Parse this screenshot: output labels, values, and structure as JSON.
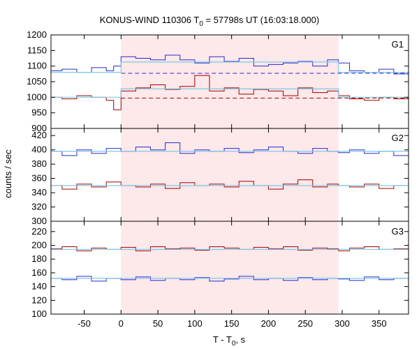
{
  "figure": {
    "title_prefix": "KONUS-WIND 110306 T",
    "title_sub": "0",
    "title_suffix": " = 57798s UT (16:03:18.000)",
    "xlabel_prefix": "T - T",
    "xlabel_sub": "0",
    "xlabel_suffix": ", s",
    "ylabel": "counts / sec"
  },
  "colors": {
    "red_series": "#a00000",
    "blue_series": "#2a2ad0",
    "fit_line": "#7fc8e8",
    "shade": "#fde8ea"
  },
  "chart_data": [
    {
      "type": "line",
      "panel": "G1",
      "xlim": [
        -95,
        390
      ],
      "ylim": [
        900,
        1200
      ],
      "yticks": [
        900,
        950,
        1000,
        1050,
        1100,
        1150,
        1200
      ],
      "shaded_interval": [
        0,
        295
      ],
      "series": [
        {
          "color": "blue",
          "style": "step",
          "x": [
            -95,
            -80,
            -60,
            -40,
            -20,
            -10,
            0,
            20,
            40,
            60,
            80,
            100,
            120,
            140,
            160,
            180,
            200,
            220,
            240,
            260,
            280,
            295,
            310,
            330,
            350,
            370,
            390
          ],
          "y": [
            1085,
            1090,
            1080,
            1095,
            1085,
            1100,
            1130,
            1125,
            1120,
            1135,
            1120,
            1110,
            1130,
            1115,
            1125,
            1100,
            1105,
            1110,
            1115,
            1100,
            1120,
            1110,
            1085,
            1080,
            1090,
            1075,
            1080
          ]
        },
        {
          "color": "red",
          "style": "step",
          "x": [
            -95,
            -80,
            -60,
            -40,
            -20,
            -10,
            0,
            20,
            40,
            60,
            80,
            100,
            120,
            140,
            160,
            180,
            200,
            220,
            240,
            260,
            280,
            295,
            310,
            330,
            350,
            370,
            390
          ],
          "y": [
            1000,
            995,
            1005,
            1000,
            990,
            960,
            1020,
            1030,
            1040,
            1025,
            1035,
            1070,
            1020,
            1030,
            1010,
            1025,
            1020,
            1005,
            1030,
            1015,
            1020,
            1005,
            995,
            990,
            1000,
            995,
            990
          ]
        },
        {
          "style": "dashed",
          "color": "blue",
          "x": [
            0,
            390
          ],
          "y": [
            1077,
            1077
          ]
        },
        {
          "style": "dashed",
          "color": "red",
          "x": [
            0,
            390
          ],
          "y": [
            997,
            997
          ]
        },
        {
          "style": "fit",
          "color": "lightblue",
          "x": [
            -95,
            0,
            0,
            295,
            295,
            390
          ],
          "y": [
            1080,
            1080,
            1113,
            1113,
            1080,
            1080
          ]
        },
        {
          "style": "fit",
          "color": "lightblue",
          "x": [
            -95,
            0,
            0,
            295,
            295,
            390
          ],
          "y": [
            1000,
            1000,
            1027,
            1027,
            1000,
            1000
          ]
        }
      ]
    },
    {
      "type": "line",
      "panel": "G2",
      "xlim": [
        -95,
        390
      ],
      "ylim": [
        300,
        430
      ],
      "yticks": [
        300,
        320,
        340,
        360,
        380,
        400,
        420
      ],
      "shaded_interval": [
        0,
        295
      ],
      "series": [
        {
          "color": "blue",
          "style": "step",
          "x": [
            -95,
            -80,
            -60,
            -40,
            -20,
            0,
            20,
            40,
            60,
            80,
            100,
            120,
            140,
            160,
            180,
            200,
            220,
            240,
            260,
            280,
            295,
            310,
            330,
            350,
            370,
            390
          ],
          "y": [
            398,
            392,
            400,
            395,
            402,
            398,
            404,
            400,
            410,
            395,
            400,
            398,
            402,
            396,
            400,
            404,
            398,
            395,
            402,
            398,
            396,
            400,
            395,
            398,
            392,
            396
          ]
        },
        {
          "color": "red",
          "style": "step",
          "x": [
            -95,
            -80,
            -60,
            -40,
            -20,
            0,
            20,
            40,
            60,
            80,
            100,
            120,
            140,
            160,
            180,
            200,
            220,
            240,
            260,
            280,
            295,
            310,
            330,
            350,
            370,
            390
          ],
          "y": [
            350,
            345,
            352,
            348,
            355,
            350,
            348,
            352,
            346,
            354,
            350,
            352,
            348,
            356,
            350,
            345,
            352,
            358,
            348,
            352,
            350,
            348,
            352,
            346,
            350,
            354
          ]
        },
        {
          "style": "fit",
          "color": "lightblue",
          "x": [
            -95,
            390
          ],
          "y": [
            398,
            398
          ]
        },
        {
          "style": "fit",
          "color": "lightblue",
          "x": [
            -95,
            390
          ],
          "y": [
            350,
            350
          ]
        }
      ]
    },
    {
      "type": "line",
      "panel": "G3",
      "xlim": [
        -95,
        390
      ],
      "ylim": [
        100,
        235
      ],
      "yticks": [
        100,
        120,
        140,
        160,
        180,
        200,
        220
      ],
      "shaded_interval": [
        0,
        295
      ],
      "series": [
        {
          "color": "red",
          "style": "step",
          "x": [
            -95,
            -80,
            -60,
            -40,
            -20,
            0,
            20,
            40,
            60,
            80,
            100,
            120,
            140,
            160,
            180,
            200,
            220,
            240,
            260,
            280,
            295,
            310,
            330,
            350,
            370,
            390
          ],
          "y": [
            195,
            198,
            192,
            196,
            194,
            197,
            192,
            198,
            195,
            196,
            193,
            198,
            196,
            194,
            197,
            195,
            198,
            193,
            196,
            195,
            192,
            196,
            198,
            194,
            195,
            197
          ]
        },
        {
          "color": "blue",
          "style": "step",
          "x": [
            -95,
            -80,
            -60,
            -40,
            -20,
            0,
            20,
            40,
            60,
            80,
            100,
            120,
            140,
            160,
            180,
            200,
            220,
            240,
            260,
            280,
            295,
            310,
            330,
            350,
            370,
            390
          ],
          "y": [
            152,
            150,
            155,
            148,
            152,
            150,
            154,
            149,
            152,
            150,
            153,
            148,
            151,
            155,
            150,
            152,
            149,
            153,
            150,
            152,
            151,
            149,
            154,
            150,
            152,
            156
          ]
        },
        {
          "style": "fit",
          "color": "lightblue",
          "x": [
            -95,
            390
          ],
          "y": [
            194,
            194
          ]
        },
        {
          "style": "fit",
          "color": "lightblue",
          "x": [
            -95,
            390
          ],
          "y": [
            152,
            152
          ]
        }
      ],
      "xticks": [
        -50,
        0,
        50,
        100,
        150,
        200,
        250,
        300,
        350
      ]
    }
  ]
}
